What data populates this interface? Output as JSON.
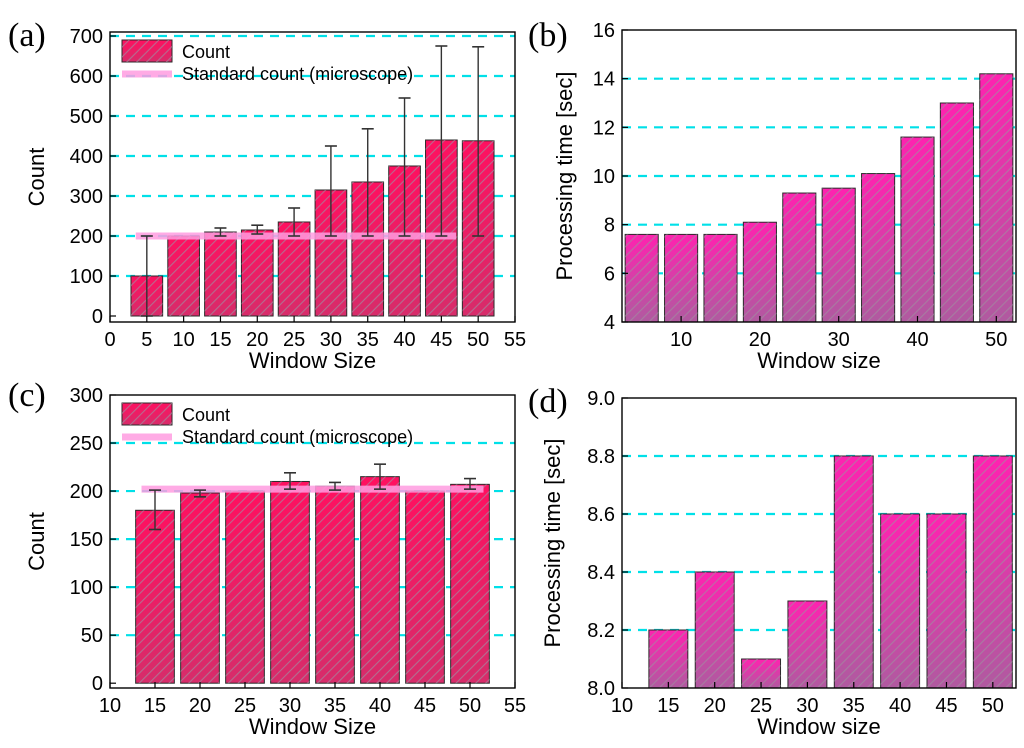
{
  "chart_data": [
    {
      "panel": "(a)",
      "type": "bar",
      "xlabel": "Window Size",
      "ylabel": "Count",
      "xlim": [
        0,
        55
      ],
      "ylim": [
        -15,
        710
      ],
      "xticks": [
        0,
        5,
        10,
        15,
        20,
        25,
        30,
        35,
        40,
        45,
        50,
        55
      ],
      "yticks": [
        0,
        100,
        200,
        300,
        400,
        500,
        600,
        700
      ],
      "gridlines": [
        100,
        200,
        300,
        400,
        500,
        600,
        700
      ],
      "bar_width": 4.3,
      "x": [
        5,
        10,
        15,
        20,
        25,
        30,
        35,
        40,
        45,
        50
      ],
      "values": [
        100,
        200,
        210,
        215,
        235,
        315,
        335,
        375,
        440,
        438
      ],
      "err_low": [
        0,
        200,
        200,
        205,
        200,
        200,
        200,
        200,
        200,
        200
      ],
      "err_high": [
        200,
        200,
        220,
        227,
        270,
        425,
        468,
        545,
        675,
        673
      ],
      "reference": {
        "value": 200,
        "x_range": [
          3.5,
          47
        ]
      },
      "legend": [
        {
          "kind": "bar",
          "label": "Count"
        },
        {
          "kind": "line",
          "label": "Standard count (microscope)"
        }
      ],
      "legend_position": "top-left"
    },
    {
      "panel": "(b)",
      "type": "bar",
      "xlabel": "Window size",
      "ylabel": "Processing time [sec]",
      "xlim": [
        2.5,
        52.5
      ],
      "ylim": [
        4,
        16
      ],
      "xticks": [
        10,
        20,
        30,
        40,
        50
      ],
      "yticks": [
        4,
        6,
        8,
        10,
        12,
        14,
        16
      ],
      "gridlines": [
        6,
        8,
        10,
        12,
        14
      ],
      "bar_width": 4.2,
      "x": [
        5,
        10,
        15,
        20,
        25,
        30,
        35,
        40,
        45,
        50
      ],
      "values": [
        7.6,
        7.6,
        7.6,
        8.1,
        9.3,
        9.5,
        10.1,
        11.6,
        13.0,
        14.2
      ]
    },
    {
      "panel": "(c)",
      "type": "bar",
      "xlabel": "Window Size",
      "ylabel": "Count",
      "xlim": [
        10,
        55
      ],
      "ylim": [
        -5,
        300
      ],
      "xticks": [
        10,
        15,
        20,
        25,
        30,
        35,
        40,
        45,
        50,
        55
      ],
      "yticks": [
        0,
        50,
        100,
        150,
        200,
        250,
        300
      ],
      "gridlines": [
        50,
        100,
        150,
        200,
        250
      ],
      "bar_width": 4.3,
      "x": [
        15,
        20,
        25,
        30,
        35,
        40,
        45,
        50
      ],
      "values": [
        180,
        198,
        200,
        210,
        205,
        215,
        200,
        207
      ],
      "err_low": [
        160,
        194,
        200,
        202,
        201,
        202,
        200,
        202
      ],
      "err_high": [
        201,
        201,
        200,
        219,
        209,
        228,
        200,
        213
      ],
      "reference": {
        "value": 202,
        "x_range": [
          13.5,
          51.5
        ]
      },
      "legend": [
        {
          "kind": "bar",
          "label": "Count"
        },
        {
          "kind": "line",
          "label": "Standard count (microscope)"
        }
      ],
      "legend_position": "top-left"
    },
    {
      "panel": "(d)",
      "type": "bar",
      "xlabel": "Window size",
      "ylabel": "Processing time [sec]",
      "xlim": [
        10,
        52.5
      ],
      "ylim": [
        8.0,
        9.0
      ],
      "xticks": [
        10,
        15,
        20,
        25,
        30,
        35,
        40,
        45,
        50
      ],
      "yticks": [
        "8.0",
        "8.2",
        "8.4",
        "8.6",
        "8.8",
        "9.0"
      ],
      "gridlines": [
        8.2,
        8.4,
        8.6,
        8.8
      ],
      "bar_width": 4.2,
      "x": [
        15,
        20,
        25,
        30,
        35,
        40,
        45,
        50
      ],
      "values": [
        8.2,
        8.4,
        8.1,
        8.3,
        8.8,
        8.6,
        8.6,
        8.8
      ]
    }
  ],
  "colors": {
    "bar_top": "#ff1060",
    "bar_bottom": "#d72c6a",
    "bar_top_b": "#ff22b0",
    "bar_bottom_b": "#b05aa0",
    "hatch": "#9a8c9a",
    "grid": "#00e0e8",
    "reference": "#ff9ce0",
    "error": "#333333"
  }
}
